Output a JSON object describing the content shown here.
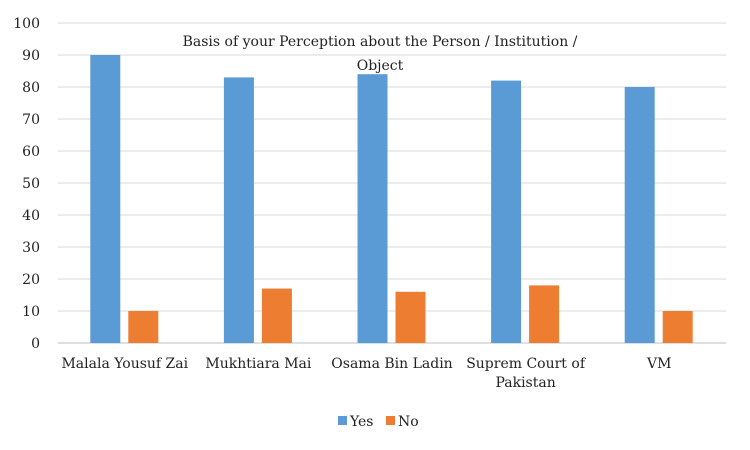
{
  "chart_data": {
    "type": "bar",
    "title": "Basis of your Perception about the Person / Institution / Object",
    "categories": [
      "Malala Yousuf Zai",
      "Mukhtiara Mai",
      "Osama Bin Ladin",
      "Suprem Court of Pakistan",
      "VM"
    ],
    "series": [
      {
        "name": "Yes",
        "values": [
          90,
          83,
          84,
          82,
          80
        ],
        "color": "#5B9BD5"
      },
      {
        "name": "No",
        "values": [
          10,
          17,
          16,
          18,
          10
        ],
        "color": "#ED7D31"
      }
    ],
    "ylim": [
      0,
      100
    ],
    "yticks": [
      0,
      10,
      20,
      30,
      40,
      50,
      60,
      70,
      80,
      90,
      100
    ],
    "grid": true,
    "legend": "bottom",
    "xlabel": "",
    "ylabel": ""
  }
}
